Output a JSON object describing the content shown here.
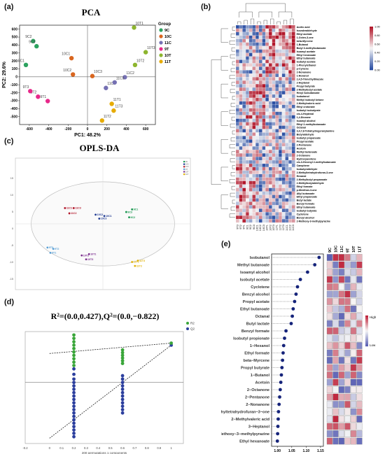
{
  "panels": {
    "a": "(a)",
    "b": "(b)",
    "c": "(c)",
    "d": "(d)",
    "e": "(e)"
  },
  "chart_data": [
    {
      "id": "pca",
      "type": "scatter",
      "title": "PCA",
      "xlabel": "PC1: 48.2%",
      "ylabel": "PC2: 29.6%",
      "xlim": [
        -700,
        700
      ],
      "ylim": [
        -600,
        650
      ],
      "xticks": [
        -600,
        -400,
        -200,
        0,
        200,
        400,
        600
      ],
      "yticks": [
        -500,
        -400,
        -300,
        -200,
        -100,
        0,
        100,
        200,
        300,
        400,
        500,
        600
      ],
      "legend_title": "Group",
      "legend_position": "right",
      "series": [
        {
          "name": "9C",
          "color": "#2ca25f",
          "points": [
            {
              "label": "9C1",
              "x": -635,
              "y": 150
            },
            {
              "label": "9C2",
              "x": -560,
              "y": 450
            },
            {
              "label": "9C3",
              "x": -525,
              "y": 385
            }
          ]
        },
        {
          "name": "10C",
          "color": "#d9661f",
          "points": [
            {
              "label": "10C1",
              "x": -165,
              "y": 235
            },
            {
              "label": "10C2",
              "x": -150,
              "y": 30
            },
            {
              "label": "10C3",
              "x": 50,
              "y": 10
            }
          ]
        },
        {
          "name": "11C",
          "color": "#7570b3",
          "points": [
            {
              "label": "11C1",
              "x": 190,
              "y": -140
            },
            {
              "label": "11C2",
              "x": 385,
              "y": -5
            },
            {
              "label": "11C3",
              "x": 280,
              "y": -70
            }
          ]
        },
        {
          "name": "9T",
          "color": "#e7298a",
          "points": [
            {
              "label": "9T1",
              "x": -410,
              "y": -305
            },
            {
              "label": "9T2",
              "x": -510,
              "y": -250
            },
            {
              "label": "9T3",
              "x": -590,
              "y": -180
            }
          ]
        },
        {
          "name": "10T",
          "color": "#8db52e",
          "points": [
            {
              "label": "10T1",
              "x": 480,
              "y": 620
            },
            {
              "label": "10T2",
              "x": 490,
              "y": 150
            },
            {
              "label": "10T3",
              "x": 600,
              "y": 310
            }
          ]
        },
        {
          "name": "11T",
          "color": "#e6ab02",
          "points": [
            {
              "label": "11T1",
              "x": 250,
              "y": -340
            },
            {
              "label": "11T2",
              "x": 150,
              "y": -550
            },
            {
              "label": "11T3",
              "x": 270,
              "y": -425
            }
          ]
        }
      ]
    },
    {
      "id": "heatmap",
      "type": "heatmap",
      "columns": [
        "9T3",
        "9T2",
        "9T1",
        "9C1",
        "9C2",
        "9C3",
        "10C1",
        "10C2",
        "10C3",
        "10T1",
        "10T2",
        "10T3",
        "11T1",
        "11T2",
        "11T3",
        "11C1",
        "11C2",
        "11C3"
      ],
      "rows": [
        "Acetic acid",
        "Isovaleraldehyde",
        "Ethyl acetate",
        "1-Octen-3-one",
        "beta-Myrcene",
        "1-Butanol",
        "Butyl 3-methylbutanoate",
        "Isoamyl acetate",
        "Ethyl hexanoate",
        "Ethyl butanoate",
        "Isobutyl acetate",
        "1-Phenylethanol",
        "p-Cymene",
        "2-Nonanone",
        "1-Hexanol",
        "2,4,5-Trimethylthiazole",
        "2-Heptanol",
        "Propyl butyrate",
        "2-Methylbutyl acetate",
        "Hexyl isobutanoate",
        "Isobutanol",
        "Methyl isobutyl ketone",
        "2-Methylvaleric acid",
        "Ethyl crotonate",
        "Isobutyl isobutyrate",
        "cis-4-Heptenal",
        "1,4-Dioxane",
        "Isoamyl alcohol",
        "Ethyl 2-methylbutanoate",
        "Octanal",
        "3,4,7,8-Tetrahydrogeranylamine",
        "Butyraldehyde",
        "Isobutyl propanoate",
        "Propyl acetate",
        "2-Pentanone",
        "Acetoin",
        "Methyl butanoate",
        "2-Octanone",
        "Hydroxyacetone",
        "cis-3-Hexenyl 2-methylbutanoate",
        "Camphene",
        "Isobutyraldehyde",
        "2-Methyltetrahydrofuran-3-one",
        "Hexanal",
        "2-Methylbutyl propanoate",
        "2-Methylbutyraldehyde",
        "Ethyl formate",
        "p-Menthan-3-one",
        "Allyl butanoate",
        "Ethyl propanoate",
        "Butyl lactate",
        "Benzyl formate",
        "Ethyl butanoate",
        "Isobutyl butyrate",
        "Cyclotene",
        "Benzyl alcohol",
        "2-Methoxy-3-methylpyrazine"
      ],
      "color_range": [
        0.0,
        1.0
      ],
      "colorbar_ticks": [
        "1.00",
        "0.80",
        "0.60",
        "0.40",
        "0.20",
        "0.00"
      ],
      "colors": {
        "low": "#2b4fa3",
        "mid": "#f7f7f7",
        "high": "#b2182b"
      }
    },
    {
      "id": "oplsda",
      "type": "scatter",
      "title": "OPLS-DA",
      "xlim": [
        -12,
        12
      ],
      "ylim": [
        -10,
        10
      ],
      "yticks": [
        "15",
        "10",
        "5",
        "0",
        "-5",
        "-10",
        "-15"
      ],
      "series": [
        {
          "name": "9C",
          "color": "#1a9850",
          "points": [
            {
              "label": "9C3",
              "x": 3.2,
              "y": 1.8
            },
            {
              "label": "9C2",
              "x": 3.6,
              "y": 1.0
            },
            {
              "label": "9C1",
              "x": 4.0,
              "y": 2.2
            }
          ]
        },
        {
          "name": "10C",
          "color": "#1f3a93",
          "points": [
            {
              "label": "10C1",
              "x": 0.2,
              "y": 1.2
            },
            {
              "label": "10C2",
              "x": -1.0,
              "y": 1.4
            },
            {
              "label": "10C3",
              "x": -0.5,
              "y": 0.8
            }
          ]
        },
        {
          "name": "11C",
          "color": "#b2182b",
          "points": [
            {
              "label": "11C1",
              "x": -5.2,
              "y": 2.4
            },
            {
              "label": "11C2",
              "x": -4.6,
              "y": 1.6
            },
            {
              "label": "11C3",
              "x": -4.0,
              "y": 2.4
            }
          ]
        },
        {
          "name": "9T",
          "color": "#5aa0d6",
          "points": [
            {
              "label": "9T3",
              "x": -7.6,
              "y": -3.6
            },
            {
              "label": "9T2",
              "x": -6.8,
              "y": -3.8
            },
            {
              "label": "9T1",
              "x": -7.2,
              "y": -4.4
            }
          ]
        },
        {
          "name": "10T",
          "color": "#7b2d8e",
          "points": [
            {
              "label": "10T2",
              "x": -2.9,
              "y": -4.8
            },
            {
              "label": "10T1",
              "x": -1.9,
              "y": -4.6
            },
            {
              "label": "10T3",
              "x": -2.3,
              "y": -5.4
            }
          ]
        },
        {
          "name": "11T",
          "color": "#e0b000",
          "points": [
            {
              "label": "11T1",
              "x": 4.0,
              "y": -5.8
            },
            {
              "label": "11T3",
              "x": 4.8,
              "y": -5.6
            },
            {
              "label": "11T2",
              "x": 4.4,
              "y": -6.4
            }
          ]
        }
      ],
      "legend_entries": [
        "9C",
        "10C",
        "11C",
        "9T",
        "10T",
        "11T"
      ]
    },
    {
      "id": "permutation",
      "type": "scatter",
      "title": "R²=(0.0,0.427),Q²=(0.0,−0.822)",
      "xlabel": "200 permutations 1 components",
      "xlim": [
        -0.2,
        1.1
      ],
      "ylim": [
        -0.9,
        0.75
      ],
      "xticks": [
        "-0.2",
        "0",
        "0.1",
        "0.2",
        "0.3",
        "0.4",
        "0.5",
        "0.6",
        "0.7",
        "0.8",
        "0.9",
        "1"
      ],
      "legend": [
        "R2",
        "Q2"
      ],
      "series": [
        {
          "name": "R2",
          "color": "#3aa63a",
          "points_x": [
            0.2,
            0.2,
            0.2,
            0.2,
            0.2,
            0.2,
            0.2,
            0.2,
            0.2,
            0.2,
            0.6,
            0.6,
            0.6,
            0.6,
            0.6,
            0.6,
            1.0
          ],
          "points_y": [
            0.7,
            0.65,
            0.6,
            0.55,
            0.5,
            0.45,
            0.4,
            0.35,
            0.3,
            0.25,
            0.48,
            0.44,
            0.4,
            0.36,
            0.32,
            0.28,
            0.58
          ],
          "regression": [
            [
              0.0,
              0.427
            ],
            [
              1.0,
              0.58
            ]
          ]
        },
        {
          "name": "Q2",
          "color": "#2c3f9e",
          "points_x": [
            0.2,
            0.2,
            0.2,
            0.2,
            0.2,
            0.2,
            0.2,
            0.2,
            0.2,
            0.2,
            0.2,
            0.2,
            0.2,
            0.2,
            0.2,
            0.2,
            0.2,
            0.2,
            0.2,
            0.2,
            0.6,
            0.6,
            0.6,
            0.6,
            0.6,
            0.6,
            0.6,
            0.6,
            0.6,
            0.6,
            0.6,
            0.6,
            1.0
          ],
          "points_y": [
            0.2,
            0.12,
            0.05,
            0.0,
            -0.05,
            -0.1,
            -0.15,
            -0.2,
            -0.25,
            -0.3,
            -0.35,
            -0.4,
            -0.45,
            -0.5,
            -0.55,
            -0.6,
            -0.65,
            -0.7,
            -0.75,
            -0.8,
            0.1,
            0.05,
            0.0,
            -0.05,
            -0.1,
            -0.15,
            -0.2,
            -0.25,
            -0.3,
            -0.35,
            -0.4,
            -0.45,
            0.55
          ],
          "regression": [
            [
              0.0,
              -0.822
            ],
            [
              1.0,
              0.55
            ]
          ]
        }
      ]
    },
    {
      "id": "vip",
      "type": "scatter",
      "xlim": [
        0.98,
        1.16
      ],
      "xticks": [
        "1.00",
        "1.05",
        "1.10",
        "1.15"
      ],
      "columns": [
        "9C",
        "10C",
        "11C",
        "9T",
        "10T",
        "11T"
      ],
      "legend": [
        "High",
        "Low"
      ],
      "compounds": [
        "Isobutanol",
        "Methyl butanoate",
        "Isoamyl alcohol",
        "Isobutyl acetate",
        "Cyclotene",
        "Benzyl alcohol",
        "Propyl acetate",
        "Ethyl butanoate",
        "Octanal",
        "Butyl lactate",
        "Benzyl formate",
        "Isobutyl propionate",
        "1−Hexanol",
        "Ethyl formate",
        "beta−Myrcene",
        "Propyl butyrate",
        "1−Butanol",
        "Acetoin",
        "2−Octanone",
        "2−Pentanone",
        "2−Nonanone",
        "2−Methyltetrahydrofuran−3−one",
        "2−Methylvaleric acid",
        "3−Heptanol",
        "2−Methoxy−3−methylpyrazine",
        "Ethyl hexanoate"
      ],
      "vip": [
        1.145,
        1.13,
        1.105,
        1.08,
        1.07,
        1.065,
        1.06,
        1.055,
        1.052,
        1.048,
        1.03,
        1.025,
        1.022,
        1.02,
        1.018,
        1.016,
        1.014,
        1.012,
        1.01,
        1.008,
        1.006,
        1.004,
        1.003,
        1.002,
        1.001,
        1.0
      ]
    }
  ]
}
